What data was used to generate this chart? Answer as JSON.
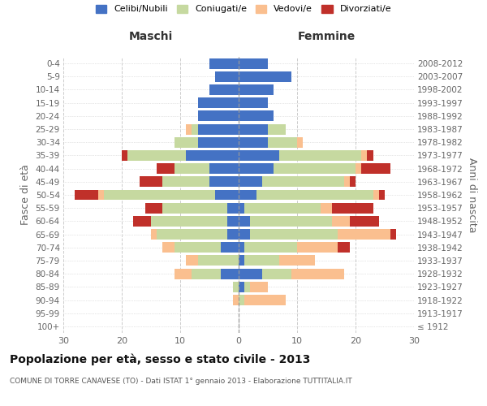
{
  "age_groups": [
    "100+",
    "95-99",
    "90-94",
    "85-89",
    "80-84",
    "75-79",
    "70-74",
    "65-69",
    "60-64",
    "55-59",
    "50-54",
    "45-49",
    "40-44",
    "35-39",
    "30-34",
    "25-29",
    "20-24",
    "15-19",
    "10-14",
    "5-9",
    "0-4"
  ],
  "birth_years": [
    "≤ 1912",
    "1913-1917",
    "1918-1922",
    "1923-1927",
    "1928-1932",
    "1933-1937",
    "1938-1942",
    "1943-1947",
    "1948-1952",
    "1953-1957",
    "1958-1962",
    "1963-1967",
    "1968-1972",
    "1973-1977",
    "1978-1982",
    "1983-1987",
    "1988-1992",
    "1993-1997",
    "1998-2002",
    "2003-2007",
    "2008-2012"
  ],
  "maschi": {
    "celibi": [
      0,
      0,
      0,
      0,
      3,
      0,
      3,
      2,
      2,
      2,
      4,
      5,
      5,
      9,
      7,
      7,
      7,
      7,
      5,
      4,
      5
    ],
    "coniugati": [
      0,
      0,
      0,
      1,
      5,
      7,
      8,
      12,
      13,
      11,
      19,
      8,
      6,
      10,
      4,
      1,
      0,
      0,
      0,
      0,
      0
    ],
    "vedovi": [
      0,
      0,
      1,
      0,
      3,
      2,
      2,
      1,
      0,
      0,
      1,
      0,
      0,
      0,
      0,
      1,
      0,
      0,
      0,
      0,
      0
    ],
    "divorziati": [
      0,
      0,
      0,
      0,
      0,
      0,
      0,
      0,
      3,
      3,
      4,
      4,
      3,
      1,
      0,
      0,
      0,
      0,
      0,
      0,
      0
    ]
  },
  "femmine": {
    "nubili": [
      0,
      0,
      0,
      1,
      4,
      1,
      1,
      2,
      2,
      1,
      3,
      4,
      6,
      7,
      5,
      5,
      6,
      5,
      6,
      9,
      5
    ],
    "coniugate": [
      0,
      0,
      1,
      1,
      5,
      6,
      9,
      15,
      14,
      13,
      20,
      14,
      14,
      14,
      5,
      3,
      0,
      0,
      0,
      0,
      0
    ],
    "vedove": [
      0,
      0,
      7,
      3,
      9,
      6,
      7,
      9,
      3,
      2,
      1,
      1,
      1,
      1,
      1,
      0,
      0,
      0,
      0,
      0,
      0
    ],
    "divorziate": [
      0,
      0,
      0,
      0,
      0,
      0,
      2,
      1,
      5,
      7,
      1,
      1,
      5,
      1,
      0,
      0,
      0,
      0,
      0,
      0,
      0
    ]
  },
  "colors": {
    "celibi": "#4472C4",
    "coniugati": "#C6D9A0",
    "vedovi": "#FABF8F",
    "divorziati": "#C0302A"
  },
  "xlim": 30,
  "title": "Popolazione per età, sesso e stato civile - 2013",
  "subtitle": "COMUNE DI TORRE CANAVESE (TO) - Dati ISTAT 1° gennaio 2013 - Elaborazione TUTTITALIA.IT",
  "ylabel_left": "Fasce di età",
  "ylabel_right": "Anni di nascita",
  "legend_labels": [
    "Celibi/Nubili",
    "Coniugati/e",
    "Vedovi/e",
    "Divorziati/e"
  ],
  "bar_height": 0.8,
  "bg_color": "#FFFFFF",
  "grid_color": "#CCCCCC",
  "axis_label_color": "#666666"
}
